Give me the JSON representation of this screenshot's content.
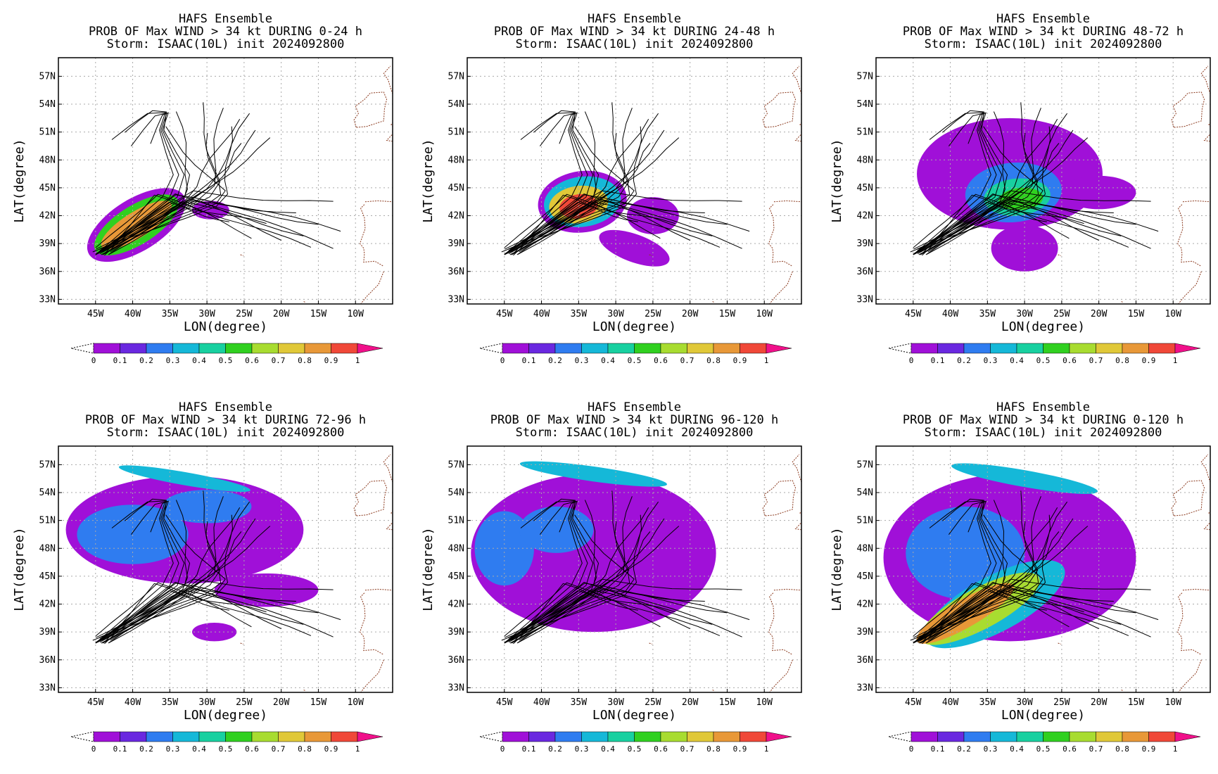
{
  "figure": {
    "colorbar_ticks": [
      "0",
      "0.1",
      "0.2",
      "0.3",
      "0.4",
      "0.5",
      "0.6",
      "0.7",
      "0.8",
      "0.9",
      "1"
    ],
    "colorbar_colors": [
      "#a010d8",
      "#6a28e0",
      "#2f7cf0",
      "#15b8d8",
      "#18d0a0",
      "#30d020",
      "#a8dc30",
      "#e0c838",
      "#e89838",
      "#f04838",
      "#f0108a"
    ],
    "land_color": "#8b3a1e",
    "track_color": "#000000"
  },
  "chart_data": [
    {
      "type": "heatmap",
      "title_lines": [
        "HAFS Ensemble",
        "PROB OF Max WIND > 34 kt DURING  0-24 h",
        "Storm: ISAAC(10L) init 2024092800"
      ],
      "xlabel": "LON(degree)",
      "ylabel": "LAT(degree)",
      "xticks": [
        "45W",
        "40W",
        "35W",
        "30W",
        "25W",
        "20W",
        "15W",
        "10W"
      ],
      "xtick_values": [
        -45,
        -40,
        -35,
        -30,
        -25,
        -20,
        -15,
        -10
      ],
      "yticks": [
        "57N",
        "54N",
        "51N",
        "48N",
        "45N",
        "42N",
        "39N",
        "36N",
        "33N"
      ],
      "ytick_values": [
        57,
        54,
        51,
        48,
        45,
        42,
        39,
        36,
        33
      ],
      "xlim": [
        -50,
        -5
      ],
      "ylim": [
        32.5,
        59
      ],
      "grid": true,
      "blobs": [
        {
          "lon": -39.5,
          "lat": 41.0,
          "rx": 7.5,
          "ry": 2.8,
          "rot": -32,
          "v": 0.05
        },
        {
          "lon": -39.5,
          "lat": 41.0,
          "rx": 6.5,
          "ry": 2.1,
          "rot": -32,
          "v": 0.5
        },
        {
          "lon": -39.5,
          "lat": 41.0,
          "rx": 5.5,
          "ry": 1.4,
          "rot": -32,
          "v": 0.85
        },
        {
          "lon": -29.5,
          "lat": 42.6,
          "rx": 2.5,
          "ry": 1.0,
          "rot": 0,
          "v": 0.05
        }
      ]
    },
    {
      "type": "heatmap",
      "title_lines": [
        "HAFS Ensemble",
        "PROB OF Max WIND > 34 kt DURING 24-48 h",
        "Storm: ISAAC(10L) init 2024092800"
      ],
      "xlabel": "LON(degree)",
      "ylabel": "LAT(degree)",
      "xticks": [
        "45W",
        "40W",
        "35W",
        "30W",
        "25W",
        "20W",
        "15W",
        "10W"
      ],
      "xtick_values": [
        -45,
        -40,
        -35,
        -30,
        -25,
        -20,
        -15,
        -10
      ],
      "yticks": [
        "57N",
        "54N",
        "51N",
        "48N",
        "45N",
        "42N",
        "39N",
        "36N",
        "33N"
      ],
      "ytick_values": [
        57,
        54,
        51,
        48,
        45,
        42,
        39,
        36,
        33
      ],
      "xlim": [
        -50,
        -5
      ],
      "ylim": [
        32.5,
        59
      ],
      "grid": true,
      "blobs": [
        {
          "lon": -34.5,
          "lat": 43.5,
          "rx": 6.0,
          "ry": 3.3,
          "rot": -8,
          "v": 0.05
        },
        {
          "lon": -34.5,
          "lat": 43.5,
          "rx": 5.2,
          "ry": 2.7,
          "rot": -8,
          "v": 0.35
        },
        {
          "lon": -35.0,
          "lat": 43.2,
          "rx": 4.0,
          "ry": 2.0,
          "rot": -8,
          "v": 0.7
        },
        {
          "lon": -35.0,
          "lat": 43.0,
          "rx": 2.6,
          "ry": 1.3,
          "rot": -8,
          "v": 0.9
        },
        {
          "lon": -27.5,
          "lat": 38.5,
          "rx": 5.0,
          "ry": 1.5,
          "rot": 20,
          "v": 0.05
        },
        {
          "lon": -25.0,
          "lat": 42.0,
          "rx": 3.5,
          "ry": 2.0,
          "rot": 0,
          "v": 0.05
        }
      ]
    },
    {
      "type": "heatmap",
      "title_lines": [
        "HAFS Ensemble",
        "PROB OF Max WIND > 34 kt DURING 48-72 h",
        "Storm: ISAAC(10L) init 2024092800"
      ],
      "xlabel": "LON(degree)",
      "ylabel": "LAT(degree)",
      "xticks": [
        "45W",
        "40W",
        "35W",
        "30W",
        "25W",
        "20W",
        "15W",
        "10W"
      ],
      "xtick_values": [
        -45,
        -40,
        -35,
        -30,
        -25,
        -20,
        -15,
        -10
      ],
      "yticks": [
        "57N",
        "54N",
        "51N",
        "48N",
        "45N",
        "42N",
        "39N",
        "36N",
        "33N"
      ],
      "ytick_values": [
        57,
        54,
        51,
        48,
        45,
        42,
        39,
        36,
        33
      ],
      "xlim": [
        -50,
        -5
      ],
      "ylim": [
        32.5,
        59
      ],
      "grid": true,
      "blobs": [
        {
          "lon": -32.0,
          "lat": 46.5,
          "rx": 12.5,
          "ry": 6.0,
          "rot": 0,
          "v": 0.05
        },
        {
          "lon": -30.0,
          "lat": 38.5,
          "rx": 4.5,
          "ry": 2.5,
          "rot": 0,
          "v": 0.05
        },
        {
          "lon": -20.0,
          "lat": 44.5,
          "rx": 5.0,
          "ry": 1.8,
          "rot": 0,
          "v": 0.05
        },
        {
          "lon": -31.5,
          "lat": 44.5,
          "rx": 6.5,
          "ry": 3.2,
          "rot": -5,
          "v": 0.2
        },
        {
          "lon": -31.0,
          "lat": 44.0,
          "rx": 4.5,
          "ry": 2.0,
          "rot": -5,
          "v": 0.4
        },
        {
          "lon": -30.5,
          "lat": 43.8,
          "rx": 3.0,
          "ry": 1.2,
          "rot": -5,
          "v": 0.55
        }
      ]
    },
    {
      "type": "heatmap",
      "title_lines": [
        "HAFS Ensemble",
        "PROB OF Max WIND > 34 kt DURING 72-96 h",
        "Storm: ISAAC(10L) init 2024092800"
      ],
      "xlabel": "LON(degree)",
      "ylabel": "LAT(degree)",
      "xticks": [
        "45W",
        "40W",
        "35W",
        "30W",
        "25W",
        "20W",
        "15W",
        "10W"
      ],
      "xtick_values": [
        -45,
        -40,
        -35,
        -30,
        -25,
        -20,
        -15,
        -10
      ],
      "yticks": [
        "57N",
        "54N",
        "51N",
        "48N",
        "45N",
        "42N",
        "39N",
        "36N",
        "33N"
      ],
      "ytick_values": [
        57,
        54,
        51,
        48,
        45,
        42,
        39,
        36,
        33
      ],
      "xlim": [
        -50,
        -5
      ],
      "ylim": [
        32.5,
        59
      ],
      "grid": true,
      "blobs": [
        {
          "lon": -33.0,
          "lat": 50.0,
          "rx": 16.0,
          "ry": 5.8,
          "rot": 0,
          "v": 0.05
        },
        {
          "lon": -22.0,
          "lat": 43.5,
          "rx": 7.0,
          "ry": 1.8,
          "rot": 0,
          "v": 0.05
        },
        {
          "lon": -29.0,
          "lat": 39.0,
          "rx": 3.0,
          "ry": 1.0,
          "rot": 0,
          "v": 0.05
        },
        {
          "lon": -40.0,
          "lat": 49.5,
          "rx": 7.5,
          "ry": 3.2,
          "rot": 0,
          "v": 0.2
        },
        {
          "lon": -30.0,
          "lat": 52.5,
          "rx": 6.0,
          "ry": 1.8,
          "rot": 0,
          "v": 0.2
        },
        {
          "lon": -33.0,
          "lat": 55.5,
          "rx": 9.0,
          "ry": 0.7,
          "rot": 10,
          "v": 0.35
        }
      ]
    },
    {
      "type": "heatmap",
      "title_lines": [
        "HAFS Ensemble",
        "PROB OF Max WIND > 34 kt DURING 96-120 h",
        "Storm: ISAAC(10L) init 2024092800"
      ],
      "xlabel": "LON(degree)",
      "ylabel": "LAT(degree)",
      "xticks": [
        "45W",
        "40W",
        "35W",
        "30W",
        "25W",
        "20W",
        "15W",
        "10W"
      ],
      "xtick_values": [
        -45,
        -40,
        -35,
        -30,
        -25,
        -20,
        -15,
        -10
      ],
      "yticks": [
        "57N",
        "54N",
        "51N",
        "48N",
        "45N",
        "42N",
        "39N",
        "36N",
        "33N"
      ],
      "ytick_values": [
        57,
        54,
        51,
        48,
        45,
        42,
        39,
        36,
        33
      ],
      "xlim": [
        -50,
        -5
      ],
      "ylim": [
        32.5,
        59
      ],
      "grid": true,
      "blobs": [
        {
          "lon": -33.0,
          "lat": 47.5,
          "rx": 16.5,
          "ry": 8.5,
          "rot": 0,
          "v": 0.05
        },
        {
          "lon": -45.0,
          "lat": 48.0,
          "rx": 4.0,
          "ry": 4.0,
          "rot": 0,
          "v": 0.2
        },
        {
          "lon": -38.0,
          "lat": 50.0,
          "rx": 5.0,
          "ry": 2.5,
          "rot": 0,
          "v": 0.2
        },
        {
          "lon": -33.0,
          "lat": 56.0,
          "rx": 10.0,
          "ry": 0.8,
          "rot": 8,
          "v": 0.3
        }
      ]
    },
    {
      "type": "heatmap",
      "title_lines": [
        "HAFS Ensemble",
        "PROB OF Max WIND > 34 kt DURING 0-120 h",
        "Storm: ISAAC(10L) init 2024092800"
      ],
      "xlabel": "LON(degree)",
      "ylabel": "LAT(degree)",
      "xticks": [
        "45W",
        "40W",
        "35W",
        "30W",
        "25W",
        "20W",
        "15W",
        "10W"
      ],
      "xtick_values": [
        -45,
        -40,
        -35,
        -30,
        -25,
        -20,
        -15,
        -10
      ],
      "yticks": [
        "57N",
        "54N",
        "51N",
        "48N",
        "45N",
        "42N",
        "39N",
        "36N",
        "33N"
      ],
      "ytick_values": [
        57,
        54,
        51,
        48,
        45,
        42,
        39,
        36,
        33
      ],
      "xlim": [
        -50,
        -5
      ],
      "ylim": [
        32.5,
        59
      ],
      "grid": true,
      "blobs": [
        {
          "lon": -32.0,
          "lat": 47.0,
          "rx": 17.0,
          "ry": 9.0,
          "rot": 0,
          "v": 0.05
        },
        {
          "lon": -38.0,
          "lat": 47.5,
          "rx": 8.0,
          "ry": 5.0,
          "rot": 0,
          "v": 0.2
        },
        {
          "lon": -34.0,
          "lat": 42.0,
          "rx": 10.5,
          "ry": 3.0,
          "rot": -28,
          "v": 0.35
        },
        {
          "lon": -36.0,
          "lat": 41.5,
          "rx": 9.0,
          "ry": 2.2,
          "rot": -28,
          "v": 0.6
        },
        {
          "lon": -38.0,
          "lat": 41.0,
          "rx": 7.5,
          "ry": 1.5,
          "rot": -30,
          "v": 0.85
        },
        {
          "lon": -30.0,
          "lat": 55.5,
          "rx": 10.0,
          "ry": 0.9,
          "rot": 10,
          "v": 0.35
        }
      ]
    }
  ]
}
